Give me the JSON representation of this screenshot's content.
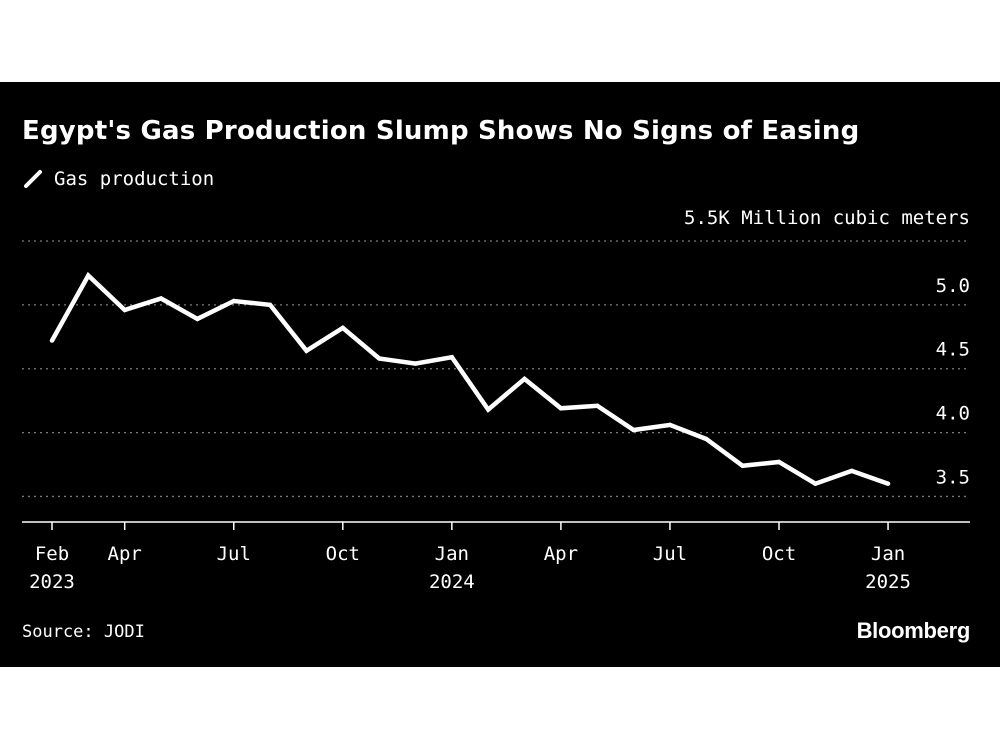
{
  "chart_data": {
    "type": "line",
    "title": "Egypt's Gas Production Slump Shows No Signs of Easing",
    "ylabel": "5.5K Million cubic meters",
    "legend": "top-left",
    "grid": true,
    "ylim": [
      3.3,
      5.5
    ],
    "y_ticks": [
      "5.0",
      "4.5",
      "4.0",
      "3.5"
    ],
    "y_tick_values": [
      5.0,
      4.5,
      4.0,
      3.5
    ],
    "x_ticks": [
      {
        "month": "2023-02",
        "line1": "Feb",
        "line2": "2023"
      },
      {
        "month": "2023-04",
        "line1": "Apr",
        "line2": ""
      },
      {
        "month": "2023-07",
        "line1": "Jul",
        "line2": ""
      },
      {
        "month": "2023-10",
        "line1": "Oct",
        "line2": ""
      },
      {
        "month": "2024-01",
        "line1": "Jan",
        "line2": "2024"
      },
      {
        "month": "2024-04",
        "line1": "Apr",
        "line2": ""
      },
      {
        "month": "2024-07",
        "line1": "Jul",
        "line2": ""
      },
      {
        "month": "2024-10",
        "line1": "Oct",
        "line2": ""
      },
      {
        "month": "2025-01",
        "line1": "Jan",
        "line2": "2025"
      }
    ],
    "series": [
      {
        "name": "Gas production",
        "color": "#ffffff",
        "x": [
          "2023-02",
          "2023-03",
          "2023-04",
          "2023-05",
          "2023-06",
          "2023-07",
          "2023-08",
          "2023-09",
          "2023-10",
          "2023-11",
          "2023-12",
          "2024-01",
          "2024-02",
          "2024-03",
          "2024-04",
          "2024-05",
          "2024-06",
          "2024-07",
          "2024-08",
          "2024-09",
          "2024-10",
          "2024-11",
          "2024-12",
          "2025-01"
        ],
        "values": [
          4.72,
          5.23,
          4.96,
          5.05,
          4.89,
          5.03,
          5.0,
          4.64,
          4.82,
          4.58,
          4.54,
          4.59,
          4.18,
          4.42,
          4.19,
          4.21,
          4.02,
          4.06,
          3.95,
          3.74,
          3.77,
          3.6,
          3.7,
          3.6
        ]
      }
    ]
  },
  "source": "Source: JODI",
  "brand": "Bloomberg",
  "colors": {
    "background": "#000000",
    "line": "#ffffff",
    "grid": "#7a7a7a"
  }
}
